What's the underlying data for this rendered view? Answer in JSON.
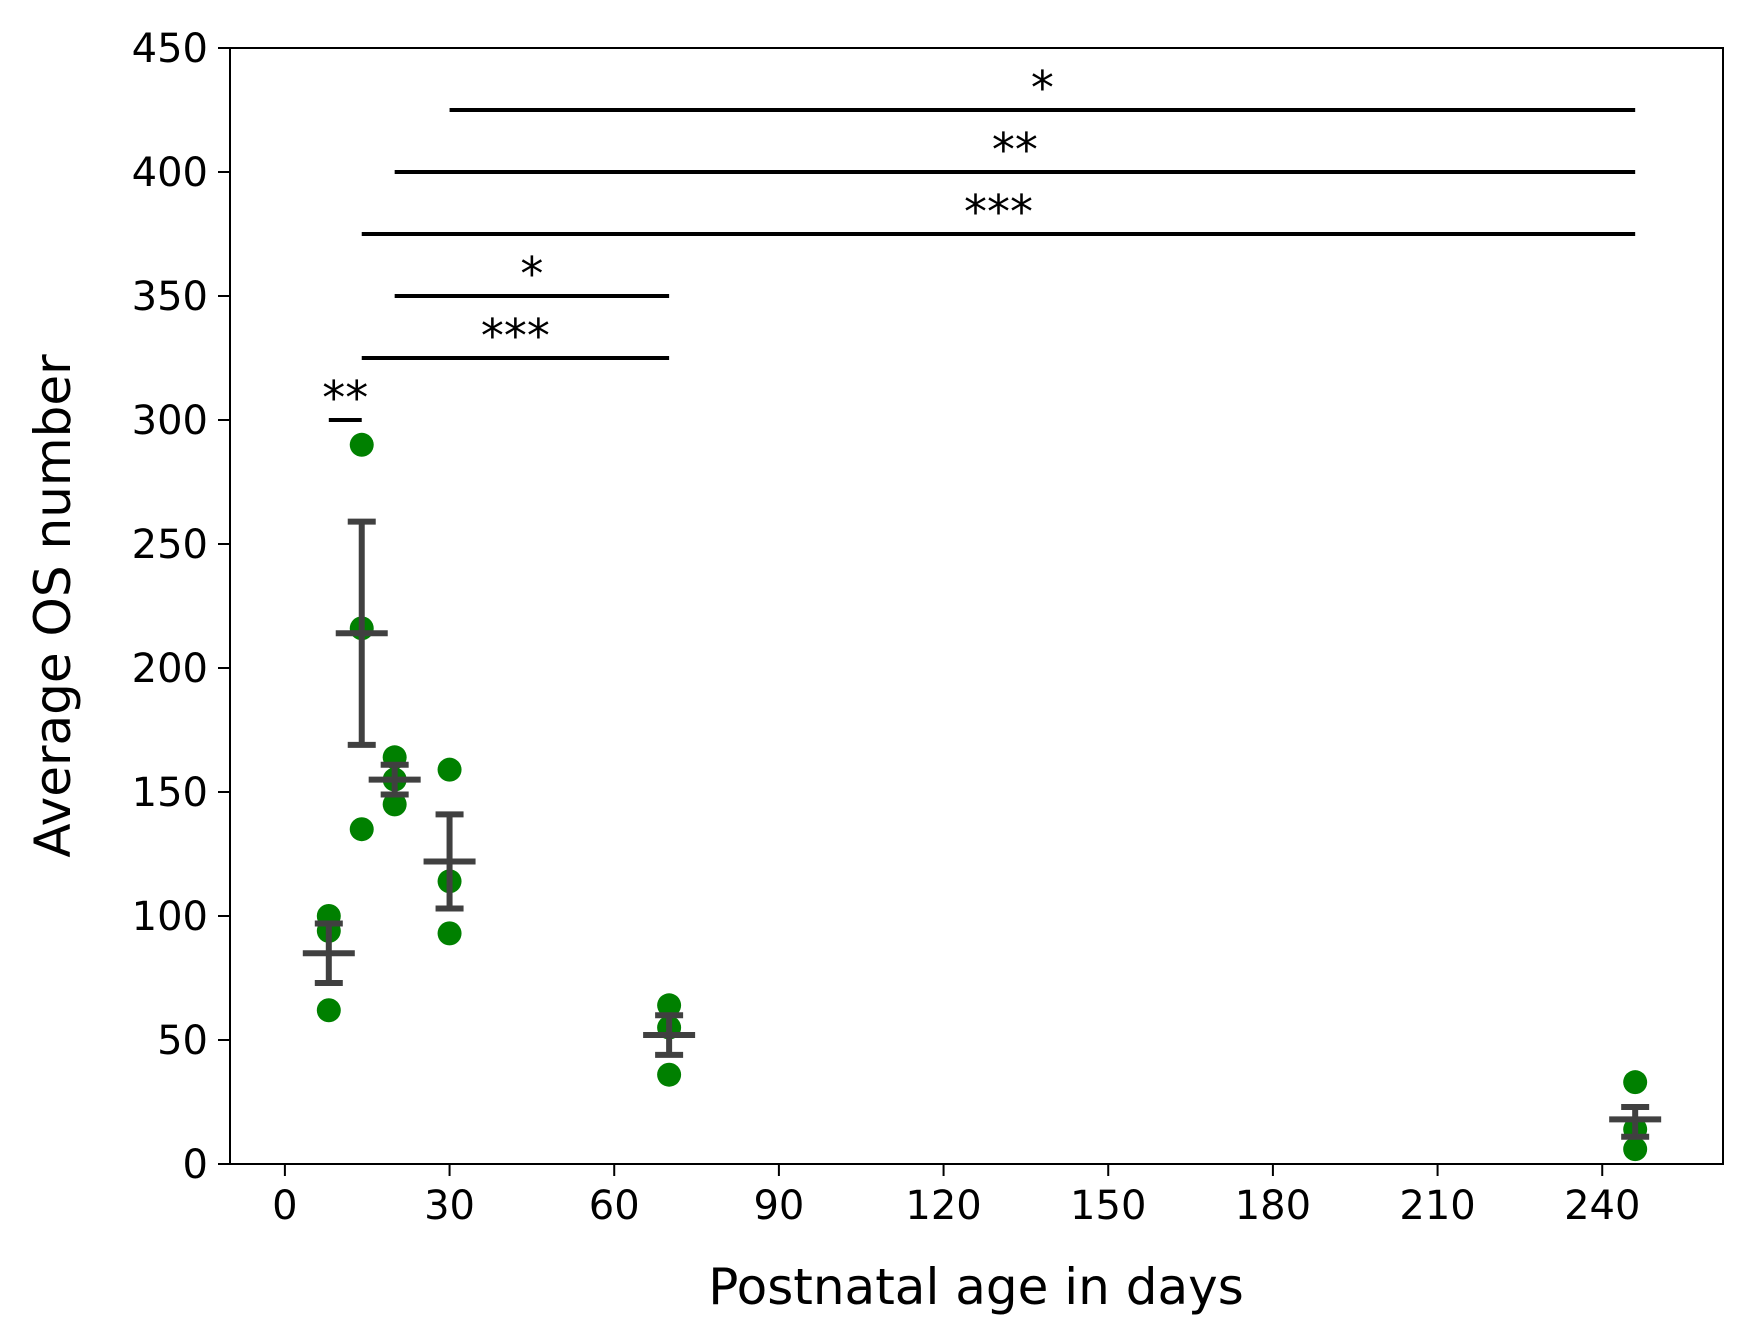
{
  "chart_data": {
    "type": "scatter",
    "title": "",
    "xlabel": "Postnatal age in days",
    "ylabel": "Average OS number",
    "xlim": [
      -10,
      262
    ],
    "ylim": [
      0,
      450
    ],
    "xticks": [
      0,
      30,
      60,
      90,
      120,
      150,
      180,
      210,
      240
    ],
    "yticks": [
      0,
      50,
      100,
      150,
      200,
      250,
      300,
      350,
      400,
      450
    ],
    "grid": false,
    "legend": "none",
    "colors": {
      "points": "#008000",
      "errorbars": "#404040",
      "brackets": "#000000"
    },
    "series": [
      {
        "points": [
          {
            "x": 8,
            "y": 62
          },
          {
            "x": 8,
            "y": 94
          },
          {
            "x": 8,
            "y": 100
          },
          {
            "x": 14,
            "y": 135
          },
          {
            "x": 14,
            "y": 216
          },
          {
            "x": 14,
            "y": 290
          },
          {
            "x": 20,
            "y": 145
          },
          {
            "x": 20,
            "y": 155
          },
          {
            "x": 20,
            "y": 164
          },
          {
            "x": 30,
            "y": 93
          },
          {
            "x": 30,
            "y": 114
          },
          {
            "x": 30,
            "y": 159
          },
          {
            "x": 70,
            "y": 36
          },
          {
            "x": 70,
            "y": 55
          },
          {
            "x": 70,
            "y": 64
          },
          {
            "x": 246,
            "y": 6
          },
          {
            "x": 246,
            "y": 14
          },
          {
            "x": 246,
            "y": 33
          }
        ]
      }
    ],
    "error_bars": [
      {
        "x": 8,
        "mean": 85,
        "low": 73,
        "high": 97
      },
      {
        "x": 14,
        "mean": 214,
        "low": 169,
        "high": 259
      },
      {
        "x": 20,
        "mean": 155,
        "low": 149,
        "high": 161
      },
      {
        "x": 30,
        "mean": 122,
        "low": 103,
        "high": 141
      },
      {
        "x": 70,
        "mean": 52,
        "low": 44,
        "high": 60
      },
      {
        "x": 246,
        "mean": 18,
        "low": 11,
        "high": 23
      }
    ],
    "significance": [
      {
        "x1": 8,
        "x2": 14,
        "y": 300,
        "label": "**"
      },
      {
        "x1": 14,
        "x2": 70,
        "y": 325,
        "label": "***"
      },
      {
        "x1": 20,
        "x2": 70,
        "y": 350,
        "label": "*"
      },
      {
        "x1": 14,
        "x2": 246,
        "y": 375,
        "label": "***"
      },
      {
        "x1": 20,
        "x2": 246,
        "y": 400,
        "label": "**"
      },
      {
        "x1": 30,
        "x2": 246,
        "y": 425,
        "label": "*"
      }
    ]
  }
}
